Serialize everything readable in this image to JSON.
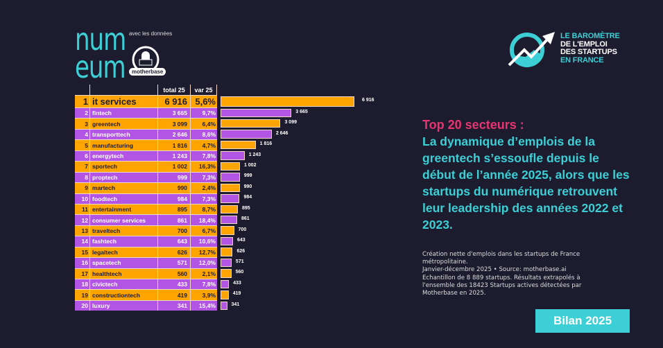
{
  "header": {
    "logo_text": "num eum",
    "avec_label": "avec les données",
    "partner_logo": "motherbase",
    "barometer_lines": [
      "LE BAROMÈTRE",
      "DE L'EMPLOI",
      "DES STARTUPS",
      "EN FRANCE"
    ]
  },
  "table": {
    "col_total": "total 25",
    "col_var": "var 25"
  },
  "chart_data": {
    "type": "bar",
    "orientation": "horizontal",
    "categories": [
      "it services",
      "fintech",
      "greentech",
      "transporttech",
      "manufacturing",
      "energytech",
      "sportech",
      "proptech",
      "martech",
      "foodtech",
      "entertainment",
      "consumer services",
      "traveltech",
      "fashtech",
      "legaltech",
      "spacetech",
      "healthtech",
      "civictech",
      "constructiontech",
      "luxury"
    ],
    "ranks": [
      "1",
      "2",
      "3",
      "4",
      "5",
      "6",
      "7",
      "8",
      "9",
      "10",
      "11",
      "12",
      "13",
      "14",
      "15",
      "16",
      "17",
      "18",
      "19",
      "20"
    ],
    "values": [
      6916,
      3665,
      3099,
      2646,
      1816,
      1243,
      1002,
      999,
      990,
      984,
      895,
      861,
      700,
      643,
      626,
      571,
      560,
      433,
      419,
      341
    ],
    "value_labels": [
      "6 916",
      "3 665",
      "3 099",
      "2 646",
      "1 816",
      "1 243",
      "1 002",
      "999",
      "990",
      "984",
      "895",
      "861",
      "700",
      "643",
      "626",
      "571",
      "560",
      "433",
      "419",
      "341"
    ],
    "var": [
      "5,6%",
      "9,7%",
      "6,4%",
      "8,6%",
      "4,7%",
      "7,8%",
      "16,3%",
      "7,3%",
      "2,4%",
      "7,3%",
      "8,7%",
      "18,4%",
      "6,7%",
      "10,6%",
      "12,7%",
      "12,0%",
      "2,1%",
      "7,8%",
      "3,9%",
      "15,4%"
    ],
    "colors": {
      "odd": "#ffa400",
      "even": "#b255e4"
    }
  },
  "right": {
    "title": "Top 20 secteurs :",
    "headline": "La dynamique d’emplois de la greentech s’essoufle depuis le début de l’année 2025, alors que les startups du numérique retrouvent leur leadership des années 2022 et 2023.",
    "note_lines": [
      "Création nette d'emplois dans les startups de France métropolitaine.",
      "Janvier-décembre 2025 • Source: motherbase.ai",
      "Echantillon de 8 889 startups. Résultats extrapolés à l'ensemble des 18423 Startups actives détectées par Motherbase en 2025."
    ],
    "badge": "Bilan 2025"
  },
  "colors": {
    "background": "#1d1c2e",
    "cyan": "#3ccfd5",
    "pink": "#e83470",
    "orange": "#ffa400",
    "purple": "#b255e4"
  }
}
